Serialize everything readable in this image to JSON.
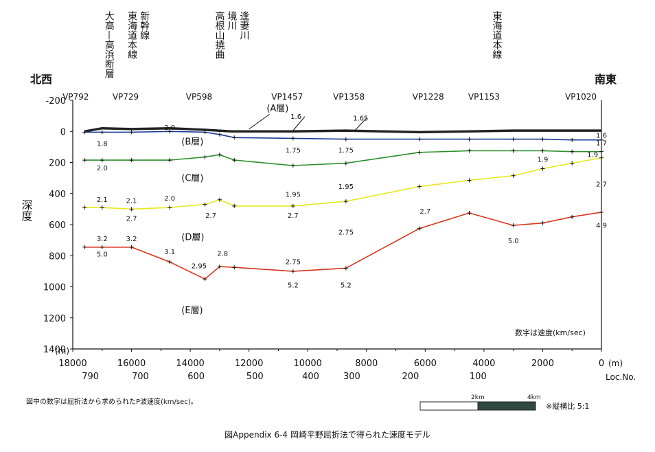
{
  "chart_data": {
    "type": "line",
    "title": "",
    "xlabel": "(m)",
    "ylabel": "深度",
    "y_unit": "(m)",
    "xlim": [
      18000,
      0
    ],
    "ylim": [
      1400,
      -200
    ],
    "x_ticks": [
      18000,
      16000,
      14000,
      12000,
      10000,
      8000,
      6000,
      4000,
      2000,
      0
    ],
    "y_ticks": [
      -200,
      0,
      200,
      400,
      600,
      800,
      1000,
      1200,
      1400
    ],
    "loc_ticks": [
      {
        "x": 17400,
        "label": "790"
      },
      {
        "x": 15700,
        "label": "700"
      },
      {
        "x": 13800,
        "label": "600"
      },
      {
        "x": 11800,
        "label": "500"
      },
      {
        "x": 9900,
        "label": "400"
      },
      {
        "x": 8500,
        "label": "300"
      },
      {
        "x": 6500,
        "label": "200"
      },
      {
        "x": 4200,
        "label": "100"
      }
    ],
    "loc_axis_label": "Loc.No.",
    "direction_left": "北西",
    "direction_right": "南東",
    "vp_labels": [
      {
        "x": 17900,
        "label": "VP792"
      },
      {
        "x": 16200,
        "label": "VP729"
      },
      {
        "x": 13700,
        "label": "VP598"
      },
      {
        "x": 10700,
        "label": "VP1457"
      },
      {
        "x": 8600,
        "label": "VP1358"
      },
      {
        "x": 5900,
        "label": "VP1228"
      },
      {
        "x": 4000,
        "label": "VP1153"
      },
      {
        "x": 700,
        "label": "VP1020"
      }
    ],
    "features": [
      {
        "x": 17000,
        "lines": [
          "大高—高浜断層"
        ]
      },
      {
        "x": 15800,
        "lines": [
          "新幹線",
          "東海道本線"
        ]
      },
      {
        "x": 12400,
        "lines": [
          "逢妻川",
          "境川",
          "高根山撓曲"
        ]
      },
      {
        "x": 3800,
        "lines": [
          "東海道本線"
        ]
      }
    ],
    "series": [
      {
        "name": "A",
        "color": "#222222",
        "x": [
          17600,
          17000,
          16000,
          14700,
          13500,
          12600,
          10500,
          8700,
          6200,
          4500,
          3000,
          2000,
          1000,
          0
        ],
        "y": [
          0,
          -20,
          -15,
          -20,
          -10,
          0,
          0,
          -5,
          5,
          0,
          -5,
          -5,
          -5,
          -5
        ]
      },
      {
        "name": "B",
        "color": "#1a3a9c",
        "x": [
          17600,
          17000,
          16000,
          14700,
          13500,
          13000,
          12500,
          10500,
          8700,
          6200,
          4500,
          3000,
          2000,
          1000,
          0
        ],
        "y": [
          5,
          5,
          5,
          0,
          5,
          20,
          40,
          45,
          50,
          50,
          50,
          50,
          50,
          55,
          55
        ]
      },
      {
        "name": "C",
        "color": "#2a8f2a",
        "x": [
          17600,
          17000,
          16000,
          14700,
          13500,
          13000,
          12500,
          10500,
          8700,
          6200,
          4500,
          3000,
          2000,
          1000,
          0
        ],
        "y": [
          185,
          185,
          185,
          185,
          165,
          150,
          185,
          220,
          205,
          135,
          125,
          125,
          125,
          130,
          130
        ]
      },
      {
        "name": "D",
        "color": "#e8e81a",
        "x": [
          17600,
          17000,
          16000,
          14700,
          13500,
          13000,
          12500,
          10500,
          8700,
          6200,
          4500,
          3000,
          2000,
          1000,
          0
        ],
        "y": [
          490,
          490,
          500,
          490,
          470,
          440,
          480,
          480,
          450,
          355,
          315,
          285,
          240,
          205,
          170
        ]
      },
      {
        "name": "E",
        "color": "#d8361c",
        "x": [
          17600,
          17000,
          16000,
          14700,
          13500,
          13000,
          12500,
          10500,
          8700,
          6200,
          4500,
          3000,
          2000,
          1000,
          0
        ],
        "y": [
          745,
          745,
          745,
          840,
          950,
          870,
          875,
          900,
          880,
          625,
          525,
          605,
          590,
          550,
          520
        ]
      }
    ],
    "layer_labels": [
      {
        "x": 11400,
        "y": -130,
        "label": "(A層)"
      },
      {
        "x": 14300,
        "y": 85,
        "label": "(B層)"
      },
      {
        "x": 14300,
        "y": 320,
        "label": "(C層)"
      },
      {
        "x": 14300,
        "y": 700,
        "label": "(D層)"
      },
      {
        "x": 14300,
        "y": 1170,
        "label": "(E層)"
      }
    ],
    "velocity_labels": [
      {
        "x": 10400,
        "y": -80,
        "label": "1.6"
      },
      {
        "x": 8200,
        "y": -70,
        "label": "1.65"
      },
      {
        "x": 14700,
        "y": -10,
        "label": "2.0"
      },
      {
        "x": 17000,
        "y": 95,
        "label": "1.8"
      },
      {
        "x": 10500,
        "y": 135,
        "label": "1.75"
      },
      {
        "x": 8700,
        "y": 135,
        "label": "1.75"
      },
      {
        "x": 0,
        "y": 40,
        "label": "1.6"
      },
      {
        "x": 0,
        "y": 90,
        "label": "1.7"
      },
      {
        "x": 17000,
        "y": 250,
        "label": "2.0"
      },
      {
        "x": 2000,
        "y": 195,
        "label": "1.9"
      },
      {
        "x": 300,
        "y": 165,
        "label": "1.9"
      },
      {
        "x": 10500,
        "y": 420,
        "label": "1.95"
      },
      {
        "x": 8700,
        "y": 370,
        "label": "1.95"
      },
      {
        "x": 0,
        "y": 355,
        "label": "2.7"
      },
      {
        "x": 17000,
        "y": 455,
        "label": "2.1"
      },
      {
        "x": 16000,
        "y": 460,
        "label": "2.1"
      },
      {
        "x": 14700,
        "y": 445,
        "label": "2.0"
      },
      {
        "x": 13300,
        "y": 555,
        "label": "2.7"
      },
      {
        "x": 16000,
        "y": 575,
        "label": "2.7"
      },
      {
        "x": 10500,
        "y": 555,
        "label": "2.7"
      },
      {
        "x": 6000,
        "y": 530,
        "label": "2.7"
      },
      {
        "x": 8700,
        "y": 665,
        "label": "2.75"
      },
      {
        "x": 0,
        "y": 620,
        "label": "4.9"
      },
      {
        "x": 17000,
        "y": 705,
        "label": "3.2"
      },
      {
        "x": 16000,
        "y": 705,
        "label": "3.2"
      },
      {
        "x": 14700,
        "y": 790,
        "label": "3.1"
      },
      {
        "x": 12900,
        "y": 800,
        "label": "2.8"
      },
      {
        "x": 13700,
        "y": 880,
        "label": "2.95"
      },
      {
        "x": 10500,
        "y": 855,
        "label": "2.75"
      },
      {
        "x": 17000,
        "y": 805,
        "label": "5.0"
      },
      {
        "x": 10500,
        "y": 1005,
        "label": "5.2"
      },
      {
        "x": 8700,
        "y": 1005,
        "label": "5.2"
      },
      {
        "x": 3000,
        "y": 720,
        "label": "5.0"
      }
    ],
    "annotation": "数字は速度(km/sec)"
  },
  "note": "図中の数字は屈折法から求められたP波速度(km/sec)。",
  "scale_bar": {
    "label_mid": "2km",
    "label_end": "4km"
  },
  "ratio_label": "※縦横比  5:1",
  "caption": "図Appendix  6-4  岡崎平野屈折法で得られた速度モデル"
}
